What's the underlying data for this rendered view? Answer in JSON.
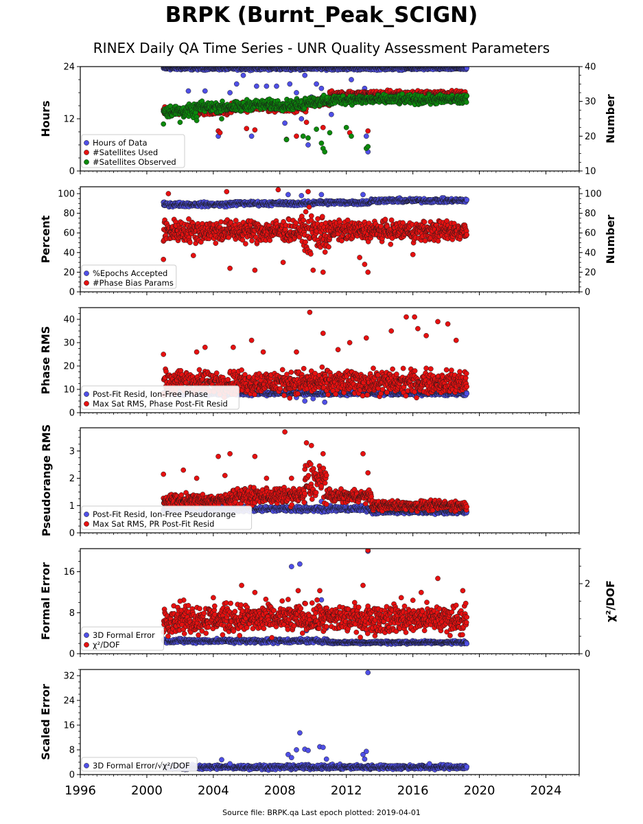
{
  "title": "BRPK (Burnt_Peak_SCIGN)",
  "subtitle": "RINEX Daily QA Time Series - UNR Quality Assessment Parameters",
  "footer": "Source file: BRPK.qa Last epoch plotted: 2019-04-01",
  "colors": {
    "blue": "#4f4fe6",
    "red": "#e61010",
    "green": "#0b8a0b"
  },
  "chart_data": [
    {
      "type": "scatter",
      "ylabel": "Hours",
      "ylim": [
        0,
        24
      ],
      "yticks": [
        0,
        12,
        24
      ],
      "y2label": "Number",
      "y2lim": [
        10,
        40
      ],
      "y2ticks": [
        10,
        20,
        30,
        40
      ],
      "xlim": [
        1996,
        2026
      ],
      "legend": "lower-left",
      "series": [
        {
          "name": "Hours of Data",
          "color": "blue",
          "axis": "left",
          "segments": [
            [
              2001.0,
              2019.25,
              23.6,
              0.25
            ]
          ],
          "outliers": [
            [
              2002.5,
              18.4
            ],
            [
              2003.5,
              18.4
            ],
            [
              2004.3,
              8
            ],
            [
              2005.0,
              18
            ],
            [
              2005.4,
              20
            ],
            [
              2005.8,
              22
            ],
            [
              2006.3,
              8
            ],
            [
              2006.6,
              19.5
            ],
            [
              2007.2,
              19.5
            ],
            [
              2007.8,
              19.5
            ],
            [
              2008.3,
              11
            ],
            [
              2008.6,
              20
            ],
            [
              2009.0,
              18
            ],
            [
              2009.3,
              12
            ],
            [
              2009.5,
              22
            ],
            [
              2009.7,
              6
            ],
            [
              2009.9,
              17
            ],
            [
              2010.2,
              20
            ],
            [
              2010.5,
              19
            ],
            [
              2010.7,
              16
            ],
            [
              2011.1,
              13
            ],
            [
              2012.3,
              21
            ],
            [
              2012.8,
              17
            ],
            [
              2013.1,
              19
            ],
            [
              2013.2,
              8
            ],
            [
              2013.3,
              4.4
            ]
          ]
        },
        {
          "name": "#Satellites Used",
          "color": "red",
          "axis": "right",
          "segments": [
            [
              2001.0,
              2005.0,
              27.2,
              0.8
            ],
            [
              2005.0,
              2009.6,
              28.4,
              0.9
            ],
            [
              2009.6,
              2011.0,
              29.8,
              0.8
            ],
            [
              2011.0,
              2019.25,
              32.0,
              0.7
            ]
          ],
          "outliers": [
            [
              2004.3,
              21.5
            ],
            [
              2004.4,
              21.0
            ],
            [
              2006.0,
              22.2
            ],
            [
              2006.5,
              21.8
            ],
            [
              2008.4,
              19.1
            ],
            [
              2009.0,
              20.0
            ],
            [
              2009.6,
              24.0
            ],
            [
              2010.6,
              22.5
            ],
            [
              2012.2,
              21.0
            ],
            [
              2013.3,
              21.5
            ]
          ]
        },
        {
          "name": "#Satellites Observed",
          "color": "green",
          "axis": "right",
          "segments": [
            [
              2001.0,
              2003.0,
              27.2,
              1.2
            ],
            [
              2003.0,
              2006.0,
              28.4,
              1.0
            ],
            [
              2006.0,
              2009.5,
              29.0,
              1.0
            ],
            [
              2009.5,
              2011.2,
              30.0,
              1.0
            ],
            [
              2011.2,
              2019.25,
              30.5,
              0.9
            ]
          ],
          "outliers": [
            [
              2001.0,
              23.5
            ],
            [
              2002.0,
              24.0
            ],
            [
              2003.0,
              24.5
            ],
            [
              2004.5,
              25.0
            ],
            [
              2008.4,
              19.0
            ],
            [
              2009.4,
              20.0
            ],
            [
              2009.7,
              19.5
            ],
            [
              2010.2,
              22.0
            ],
            [
              2010.5,
              18.0
            ],
            [
              2010.6,
              16.5
            ],
            [
              2010.7,
              15.5
            ],
            [
              2011.0,
              21.0
            ],
            [
              2012.0,
              22.5
            ],
            [
              2012.3,
              20.0
            ],
            [
              2013.2,
              16.5
            ],
            [
              2013.3,
              17.0
            ]
          ]
        }
      ]
    },
    {
      "type": "scatter",
      "ylabel": "Percent",
      "ylim": [
        0,
        107
      ],
      "yticks": [
        0,
        20,
        40,
        60,
        80,
        100
      ],
      "y2label": "Number",
      "y2lim": [
        0,
        107
      ],
      "y2ticks": [
        0,
        20,
        40,
        60,
        80,
        100
      ],
      "xlim": [
        1996,
        2026
      ],
      "legend": "lower-left",
      "series": [
        {
          "name": "%Epochs Accepted",
          "color": "blue",
          "axis": "left",
          "segments": [
            [
              2001.0,
              2005.0,
              89,
              1.5
            ],
            [
              2005.0,
              2010.0,
              90,
              1.5
            ],
            [
              2010.0,
              2013.5,
              91,
              1.5
            ],
            [
              2013.5,
              2019.25,
              93,
              1.5
            ]
          ],
          "outliers": [
            [
              2008.5,
              99
            ],
            [
              2009.3,
              98
            ],
            [
              2010.5,
              99
            ],
            [
              2013.0,
              99
            ]
          ]
        },
        {
          "name": "#Phase Bias Params",
          "color": "red",
          "axis": "right",
          "segments": [
            [
              2001.0,
              2009.5,
              62,
              8
            ],
            [
              2009.5,
              2011.0,
              60,
              14
            ],
            [
              2011.0,
              2019.25,
              62,
              7
            ]
          ],
          "outliers": [
            [
              2001.0,
              33
            ],
            [
              2001.3,
              100
            ],
            [
              2004.8,
              102
            ],
            [
              2007.9,
              104
            ],
            [
              2009.7,
              102
            ],
            [
              2010.0,
              22
            ],
            [
              2010.6,
              20
            ],
            [
              2012.8,
              35
            ],
            [
              2013.1,
              28
            ],
            [
              2013.3,
              20
            ],
            [
              2005.0,
              24
            ],
            [
              2006.5,
              22
            ],
            [
              2008.2,
              30
            ],
            [
              2002.8,
              37
            ],
            [
              2016.0,
              38
            ]
          ]
        }
      ]
    },
    {
      "type": "scatter",
      "ylabel": "Phase RMS",
      "ylim": [
        0,
        45
      ],
      "yticks": [
        0,
        10,
        20,
        30,
        40
      ],
      "xlim": [
        1996,
        2026
      ],
      "legend": "lower-left",
      "series": [
        {
          "name": "Post-Fit Resid, Ion-Free Phase",
          "color": "blue",
          "axis": "left",
          "segments": [
            [
              2001.0,
              2019.25,
              8.3,
              0.6
            ]
          ],
          "outliers": [
            [
              2009.5,
              5
            ],
            [
              2010.0,
              6
            ],
            [
              2010.7,
              4.5
            ],
            [
              2009.0,
              6.5
            ]
          ]
        },
        {
          "name": "Max Sat RMS, Phase Post-Fit Resid",
          "color": "red",
          "axis": "left",
          "segments": [
            [
              2001.0,
              2019.25,
              13,
              3.5
            ]
          ],
          "outliers": [
            [
              2001.0,
              25
            ],
            [
              2003.5,
              28
            ],
            [
              2006.3,
              31
            ],
            [
              2009.8,
              43
            ],
            [
              2010.6,
              34
            ],
            [
              2012.2,
              30
            ],
            [
              2013.2,
              32
            ],
            [
              2014.7,
              35
            ],
            [
              2015.6,
              41
            ],
            [
              2016.1,
              41
            ],
            [
              2016.3,
              36
            ],
            [
              2016.8,
              33
            ],
            [
              2017.5,
              39
            ],
            [
              2018.1,
              38
            ],
            [
              2018.6,
              31
            ],
            [
              2009.0,
              26
            ],
            [
              2011.5,
              27
            ],
            [
              2003.0,
              26
            ],
            [
              2005.2,
              28
            ],
            [
              2007.0,
              26
            ]
          ]
        }
      ]
    },
    {
      "type": "scatter",
      "ylabel": "Pseudorange RMS",
      "ylim": [
        0,
        3.85
      ],
      "yticks": [
        0,
        1,
        2,
        3
      ],
      "xlim": [
        1996,
        2026
      ],
      "legend": "lower-left",
      "series": [
        {
          "name": "Post-Fit Resid, Ion-Free Pseudorange",
          "color": "blue",
          "axis": "left",
          "segments": [
            [
              2001.0,
              2013.5,
              0.88,
              0.07
            ],
            [
              2013.5,
              2019.25,
              0.77,
              0.05
            ]
          ],
          "outliers": [
            [
              2009.5,
              1.1
            ],
            [
              2010.5,
              1.15
            ]
          ]
        },
        {
          "name": "Max Sat RMS, PR Post-Fit Resid",
          "color": "red",
          "axis": "left",
          "segments": [
            [
              2001.0,
              2005.0,
              1.2,
              0.15
            ],
            [
              2005.0,
              2009.5,
              1.35,
              0.2
            ],
            [
              2009.5,
              2010.8,
              1.9,
              0.5
            ],
            [
              2010.8,
              2013.5,
              1.35,
              0.15
            ],
            [
              2013.5,
              2019.25,
              1.0,
              0.12
            ]
          ],
          "outliers": [
            [
              2001.0,
              2.15
            ],
            [
              2002.2,
              2.3
            ],
            [
              2003.0,
              2.0
            ],
            [
              2004.3,
              2.8
            ],
            [
              2005.0,
              2.9
            ],
            [
              2006.5,
              2.8
            ],
            [
              2007.2,
              2.0
            ],
            [
              2008.3,
              3.7
            ],
            [
              2009.6,
              3.3
            ],
            [
              2009.9,
              3.2
            ],
            [
              2010.6,
              2.9
            ],
            [
              2013.0,
              2.9
            ],
            [
              2013.3,
              2.2
            ],
            [
              2008.7,
              2.0
            ],
            [
              2004.7,
              2.1
            ]
          ]
        }
      ]
    },
    {
      "type": "scatter",
      "ylabel": "Formal Error",
      "ylim": [
        0,
        20.5
      ],
      "yticks": [
        0,
        8,
        16
      ],
      "y2label": "χ²/DOF",
      "y2lim": [
        0,
        3.0
      ],
      "y2ticks": [
        0,
        2
      ],
      "xlim": [
        1996,
        2026
      ],
      "legend": "lower-left",
      "series": [
        {
          "name": "3D Formal Error",
          "color": "blue",
          "axis": "left",
          "segments": [
            [
              2001.0,
              2010.9,
              2.5,
              0.3
            ],
            [
              2010.9,
              2019.25,
              2.2,
              0.2
            ]
          ],
          "outliers": [
            [
              2008.7,
              17
            ],
            [
              2009.2,
              17.5
            ],
            [
              2010.5,
              10.5
            ],
            [
              2013.2,
              4.6
            ],
            [
              2013.3,
              20
            ],
            [
              2010.8,
              5
            ],
            [
              2009.6,
              4.5
            ]
          ]
        },
        {
          "name": "χ²/DOF",
          "color": "red",
          "axis": "right",
          "segments": [
            [
              2001.0,
              2019.25,
              1.0,
              0.28
            ]
          ],
          "outliers": [
            [
              2005.7,
              1.95
            ],
            [
              2006.5,
              1.75
            ],
            [
              2009.1,
              1.8
            ],
            [
              2010.4,
              1.8
            ],
            [
              2013.3,
              2.95
            ],
            [
              2013.0,
              1.95
            ],
            [
              2015.3,
              1.6
            ],
            [
              2016.5,
              1.75
            ],
            [
              2017.5,
              2.15
            ],
            [
              2019.0,
              1.8
            ],
            [
              2002.0,
              1.5
            ],
            [
              2004.0,
              1.6
            ],
            [
              2008.5,
              1.55
            ]
          ]
        }
      ]
    },
    {
      "type": "scatter",
      "ylabel": "Scaled Error",
      "ylim": [
        0,
        34
      ],
      "yticks": [
        0,
        8,
        16,
        24,
        32
      ],
      "xlim": [
        1996,
        2026
      ],
      "xticks": [
        1996,
        2000,
        2004,
        2008,
        2012,
        2016,
        2020,
        2024
      ],
      "legend": "lower-left",
      "series": [
        {
          "name": "3D Formal Error/√χ²/DOF",
          "color": "blue",
          "axis": "left",
          "segments": [
            [
              2001.0,
              2019.25,
              2.4,
              0.5
            ]
          ],
          "outliers": [
            [
              2004.5,
              4.8
            ],
            [
              2005.0,
              3.5
            ],
            [
              2008.5,
              6.5
            ],
            [
              2008.7,
              5.5
            ],
            [
              2009.0,
              8.0
            ],
            [
              2009.2,
              13.5
            ],
            [
              2009.5,
              8.2
            ],
            [
              2009.7,
              7.8
            ],
            [
              2010.4,
              9.0
            ],
            [
              2010.6,
              8.8
            ],
            [
              2010.8,
              5.0
            ],
            [
              2013.0,
              6.5
            ],
            [
              2013.2,
              7.5
            ],
            [
              2013.3,
              33
            ],
            [
              2013.1,
              5.0
            ],
            [
              2017.0,
              3.5
            ]
          ]
        }
      ]
    }
  ]
}
